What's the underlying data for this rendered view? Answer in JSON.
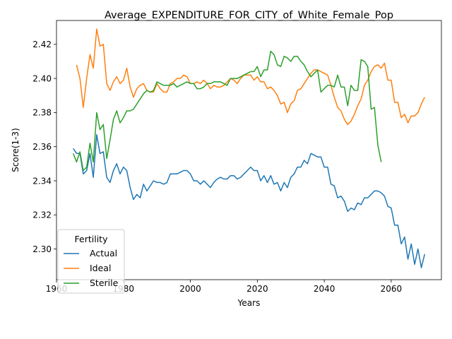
{
  "chart_data": {
    "type": "line",
    "title": "Average_EXPENDITURE_FOR_CITY_of_White_Female_Pop",
    "xlabel": "Years",
    "ylabel": "Score(1-3)",
    "xlim": [
      1960,
      2075
    ],
    "ylim": [
      2.282,
      2.434
    ],
    "xticks": [
      1960,
      1980,
      2000,
      2020,
      2040,
      2060
    ],
    "yticks": [
      2.3,
      2.32,
      2.34,
      2.36,
      2.38,
      2.4,
      2.42
    ],
    "xtick_labels": [
      "1960",
      "1980",
      "2000",
      "2020",
      "2040",
      "2060"
    ],
    "ytick_labels": [
      "2.30",
      "2.32",
      "2.34",
      "2.36",
      "2.38",
      "2.40",
      "2.42"
    ],
    "grid": false,
    "legend": {
      "title": "Fertility",
      "position": "lower-left"
    },
    "series": [
      {
        "name": "Actual",
        "color": "#1f77b4",
        "x": [
          1965,
          1966,
          1967,
          1968,
          1969,
          1970,
          1971,
          1972,
          1973,
          1974,
          1975,
          1976,
          1977,
          1978,
          1979,
          1980,
          1981,
          1982,
          1983,
          1984,
          1985,
          1986,
          1987,
          1988,
          1989,
          1990,
          1991,
          1992,
          1993,
          1994,
          1995,
          1996,
          1997,
          1998,
          1999,
          2000,
          2001,
          2002,
          2003,
          2004,
          2005,
          2006,
          2007,
          2008,
          2009,
          2010,
          2011,
          2012,
          2013,
          2014,
          2015,
          2016,
          2017,
          2018,
          2019,
          2020,
          2021,
          2022,
          2023,
          2024,
          2025,
          2026,
          2027,
          2028,
          2029,
          2030,
          2031,
          2032,
          2033,
          2034,
          2035,
          2036,
          2037,
          2038,
          2039,
          2040,
          2041,
          2042,
          2043,
          2044,
          2045,
          2046,
          2047,
          2048,
          2049,
          2050,
          2051,
          2052,
          2053,
          2054,
          2055,
          2056,
          2057,
          2058,
          2059,
          2060,
          2061,
          2062,
          2063,
          2064,
          2065,
          2066,
          2067,
          2068,
          2069,
          2070
        ],
        "values": [
          2.359,
          2.356,
          2.356,
          2.344,
          2.346,
          2.356,
          2.342,
          2.367,
          2.356,
          2.357,
          2.342,
          2.339,
          2.346,
          2.35,
          2.344,
          2.348,
          2.346,
          2.336,
          2.329,
          2.332,
          2.33,
          2.338,
          2.334,
          2.337,
          2.34,
          2.339,
          2.339,
          2.338,
          2.339,
          2.344,
          2.344,
          2.344,
          2.345,
          2.346,
          2.346,
          2.344,
          2.34,
          2.34,
          2.338,
          2.34,
          2.338,
          2.336,
          2.339,
          2.341,
          2.342,
          2.341,
          2.341,
          2.343,
          2.343,
          2.341,
          2.342,
          2.344,
          2.346,
          2.348,
          2.346,
          2.346,
          2.34,
          2.343,
          2.339,
          2.343,
          2.338,
          2.339,
          2.334,
          2.339,
          2.336,
          2.342,
          2.344,
          2.348,
          2.348,
          2.352,
          2.35,
          2.356,
          2.355,
          2.354,
          2.354,
          2.348,
          2.348,
          2.338,
          2.337,
          2.33,
          2.331,
          2.328,
          2.322,
          2.324,
          2.323,
          2.327,
          2.326,
          2.33,
          2.33,
          2.332,
          2.334,
          2.334,
          2.333,
          2.331,
          2.325,
          2.324,
          2.314,
          2.314,
          2.303,
          2.307,
          2.294,
          2.303,
          2.291,
          2.3,
          2.289,
          2.297
        ]
      },
      {
        "name": "Ideal",
        "color": "#ff7f0e",
        "x": [
          1966,
          1967,
          1968,
          1969,
          1970,
          1971,
          1972,
          1973,
          1974,
          1975,
          1976,
          1977,
          1978,
          1979,
          1980,
          1981,
          1982,
          1983,
          1984,
          1985,
          1986,
          1987,
          1988,
          1989,
          1990,
          1991,
          1992,
          1993,
          1994,
          1995,
          1996,
          1997,
          1998,
          1999,
          2000,
          2001,
          2002,
          2003,
          2004,
          2005,
          2006,
          2007,
          2008,
          2009,
          2010,
          2011,
          2012,
          2013,
          2014,
          2015,
          2016,
          2017,
          2018,
          2019,
          2020,
          2021,
          2022,
          2023,
          2024,
          2025,
          2026,
          2027,
          2028,
          2029,
          2030,
          2031,
          2032,
          2033,
          2034,
          2035,
          2036,
          2037,
          2038,
          2039,
          2040,
          2041,
          2042,
          2043,
          2044,
          2045,
          2046,
          2047,
          2048,
          2049,
          2050,
          2051,
          2052,
          2053,
          2054,
          2055,
          2056,
          2057,
          2058,
          2059,
          2060,
          2061,
          2062,
          2063,
          2064,
          2065,
          2066,
          2067,
          2068,
          2069,
          2070
        ],
        "values": [
          2.408,
          2.4,
          2.383,
          2.4,
          2.414,
          2.406,
          2.429,
          2.419,
          2.42,
          2.397,
          2.393,
          2.398,
          2.401,
          2.397,
          2.399,
          2.406,
          2.395,
          2.389,
          2.394,
          2.396,
          2.397,
          2.393,
          2.392,
          2.392,
          2.397,
          2.394,
          2.392,
          2.392,
          2.397,
          2.398,
          2.4,
          2.4,
          2.402,
          2.401,
          2.397,
          2.397,
          2.398,
          2.397,
          2.399,
          2.397,
          2.394,
          2.396,
          2.395,
          2.395,
          2.396,
          2.398,
          2.4,
          2.399,
          2.397,
          2.4,
          2.402,
          2.402,
          2.402,
          2.399,
          2.401,
          2.398,
          2.398,
          2.394,
          2.395,
          2.393,
          2.39,
          2.385,
          2.386,
          2.38,
          2.385,
          2.387,
          2.393,
          2.394,
          2.397,
          2.4,
          2.403,
          2.405,
          2.405,
          2.404,
          2.403,
          2.402,
          2.396,
          2.389,
          2.383,
          2.381,
          2.376,
          2.373,
          2.375,
          2.379,
          2.384,
          2.388,
          2.396,
          2.399,
          2.404,
          2.407,
          2.408,
          2.406,
          2.409,
          2.399,
          2.399,
          2.386,
          2.386,
          2.377,
          2.379,
          2.374,
          2.378,
          2.378,
          2.38,
          2.385,
          2.389
        ]
      },
      {
        "name": "Sterile",
        "color": "#2ca02c",
        "x": [
          1965,
          1966,
          1967,
          1968,
          1969,
          1970,
          1971,
          1972,
          1973,
          1974,
          1975,
          1976,
          1977,
          1978,
          1979,
          1980,
          1981,
          1982,
          1983,
          1984,
          1985,
          1986,
          1987,
          1988,
          1989,
          1990,
          1991,
          1992,
          1993,
          1994,
          1995,
          1996,
          1997,
          1998,
          1999,
          2000,
          2001,
          2002,
          2003,
          2004,
          2005,
          2006,
          2007,
          2008,
          2009,
          2010,
          2011,
          2012,
          2013,
          2014,
          2015,
          2016,
          2017,
          2018,
          2019,
          2020,
          2021,
          2022,
          2023,
          2024,
          2025,
          2026,
          2027,
          2028,
          2029,
          2030,
          2031,
          2032,
          2033,
          2034,
          2035,
          2036,
          2037,
          2038,
          2039,
          2040,
          2041,
          2042,
          2043,
          2044,
          2045,
          2046,
          2047,
          2048,
          2049,
          2050,
          2051,
          2052,
          2053,
          2054,
          2055,
          2056,
          2057
        ],
        "values": [
          2.356,
          2.351,
          2.357,
          2.346,
          2.348,
          2.362,
          2.351,
          2.38,
          2.37,
          2.373,
          2.353,
          2.364,
          2.376,
          2.381,
          2.374,
          2.377,
          2.381,
          2.381,
          2.382,
          2.385,
          2.388,
          2.391,
          2.393,
          2.392,
          2.393,
          2.398,
          2.397,
          2.396,
          2.396,
          2.396,
          2.397,
          2.395,
          2.396,
          2.397,
          2.398,
          2.397,
          2.397,
          2.394,
          2.394,
          2.395,
          2.397,
          2.397,
          2.398,
          2.398,
          2.398,
          2.397,
          2.396,
          2.4,
          2.4,
          2.4,
          2.401,
          2.402,
          2.403,
          2.404,
          2.404,
          2.407,
          2.401,
          2.405,
          2.405,
          2.416,
          2.414,
          2.408,
          2.407,
          2.413,
          2.412,
          2.41,
          2.413,
          2.413,
          2.41,
          2.408,
          2.404,
          2.401,
          2.403,
          2.405,
          2.392,
          2.394,
          2.396,
          2.396,
          2.395,
          2.402,
          2.395,
          2.395,
          2.384,
          2.396,
          2.393,
          2.393,
          2.411,
          2.41,
          2.407,
          2.382,
          2.383,
          2.361,
          2.351
        ]
      }
    ]
  }
}
